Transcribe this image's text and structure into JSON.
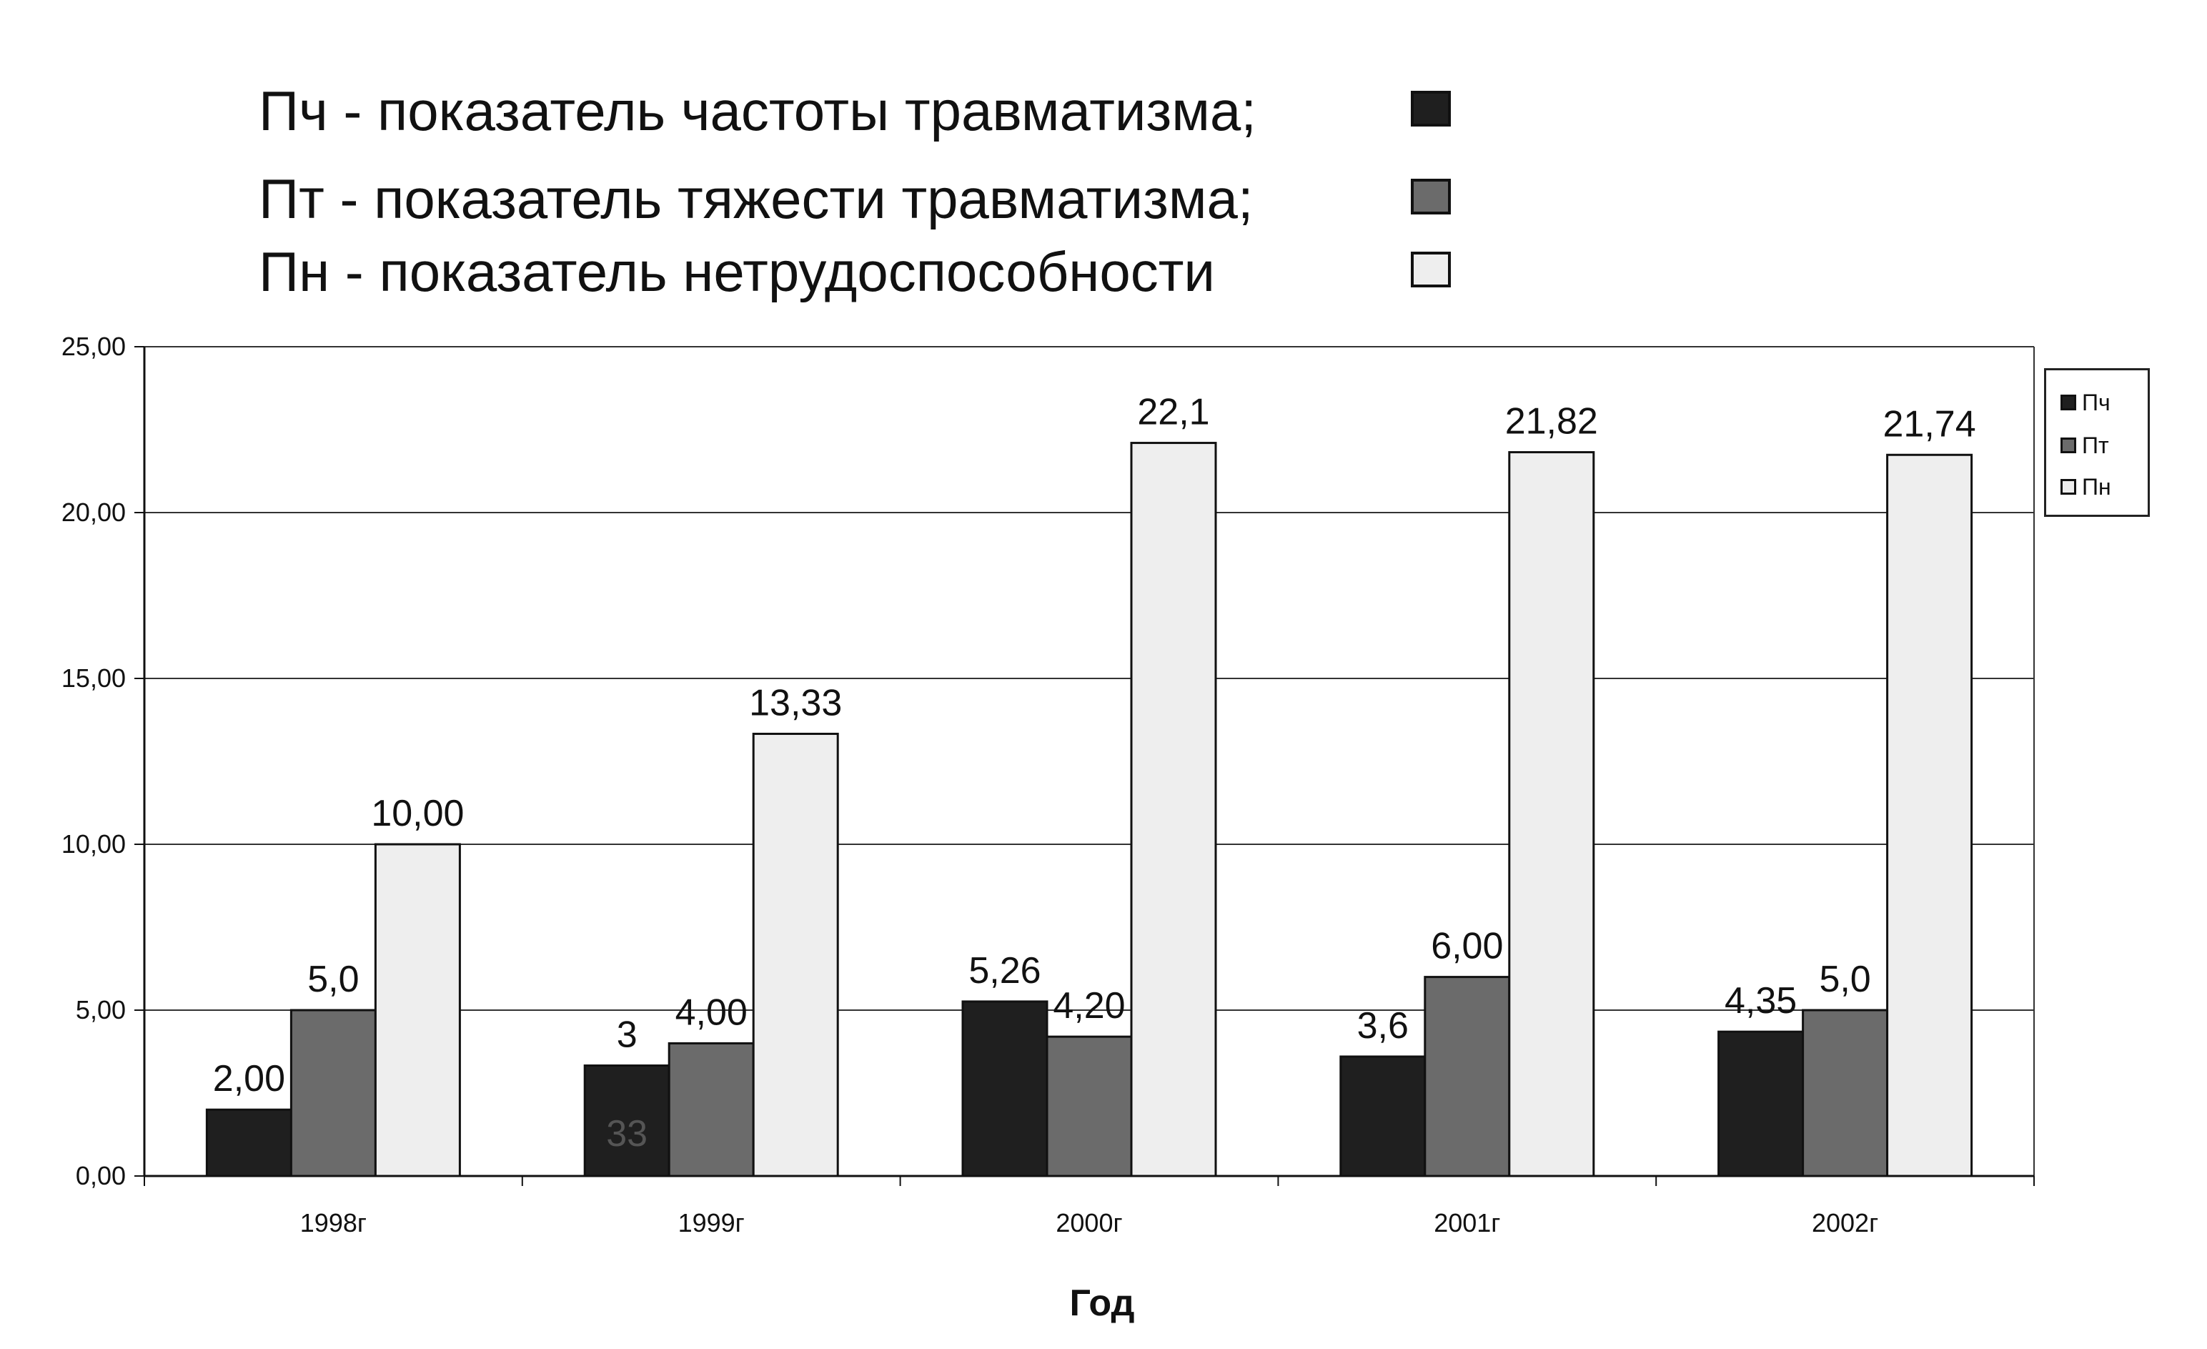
{
  "legend_top": [
    {
      "text": "Пч - показатель частоты травматизма;",
      "color": "#1f1f1f"
    },
    {
      "text": "Пт - показатель тяжести травматизма;",
      "color": "#6b6b6b"
    },
    {
      "text": "Пн - показатель нетрудоспособности",
      "color": "#eeeeee"
    }
  ],
  "legend_side": [
    {
      "label": "Пч",
      "color": "#1f1f1f"
    },
    {
      "label": "Пт",
      "color": "#6b6b6b"
    },
    {
      "label": "Пн",
      "color": "#eeeeee"
    }
  ],
  "chart_data": {
    "type": "bar",
    "title": "",
    "xlabel": "Год",
    "ylabel": "",
    "categories": [
      "1998г",
      "1999г",
      "2000г",
      "2001г",
      "2002г"
    ],
    "ylim": [
      0,
      25
    ],
    "yticks": [
      "0,00",
      "5,00",
      "10,00",
      "15,00",
      "20,00",
      "25,00"
    ],
    "grid": true,
    "legend_position": "right",
    "series": [
      {
        "name": "Пч",
        "color": "#1f1f1f",
        "values": [
          2.0,
          3.33,
          5.26,
          3.6,
          4.35
        ],
        "labels": [
          "2,00",
          "3",
          "5,26",
          "3,6",
          "4,35"
        ]
      },
      {
        "name": "Пт",
        "color": "#6b6b6b",
        "values": [
          5.0,
          4.0,
          4.2,
          6.0,
          5.0
        ],
        "labels": [
          "5,0",
          "4,00",
          "4,20",
          "6,00",
          "5,0"
        ]
      },
      {
        "name": "Пн",
        "color": "#eeeeee",
        "values": [
          10.0,
          13.33,
          22.1,
          21.82,
          21.74
        ],
        "labels": [
          "10,00",
          "13,33",
          "22,1",
          "21,82",
          "21,74"
        ]
      }
    ],
    "annotations": [
      {
        "text": "33",
        "category": "1999г",
        "series": "Пч"
      }
    ]
  }
}
